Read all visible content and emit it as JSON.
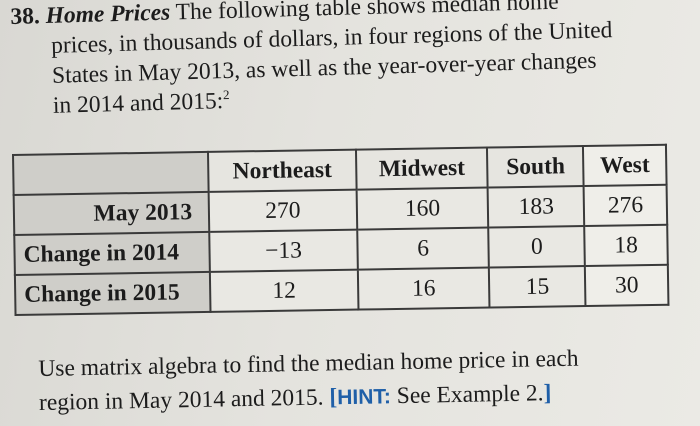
{
  "problem": {
    "number": "38.",
    "topic": "Home Prices",
    "line1": "The following table shows median home",
    "line2": "prices, in thousands of dollars, in four regions of the United",
    "line3": "States in May 2013, as well as the year-over-year changes",
    "line4": "in 2014 and 2015:",
    "footnote_mark": "2"
  },
  "table": {
    "columns": [
      "Northeast",
      "Midwest",
      "South",
      "West"
    ],
    "rows": [
      {
        "label": "May 2013",
        "values": [
          "270",
          "160",
          "183",
          "276"
        ]
      },
      {
        "label": "Change in 2014",
        "values": [
          "−13",
          "6",
          "0",
          "18"
        ]
      },
      {
        "label": "Change in 2015",
        "values": [
          "12",
          "16",
          "15",
          "30"
        ]
      }
    ]
  },
  "footer": {
    "line1": "Use matrix algebra to find the median home price in each",
    "line2": "region in May 2014 and 2015.",
    "hint_open": "[",
    "hint_label": "HINT:",
    "hint_text": " See Example 2.",
    "hint_close": "]"
  }
}
